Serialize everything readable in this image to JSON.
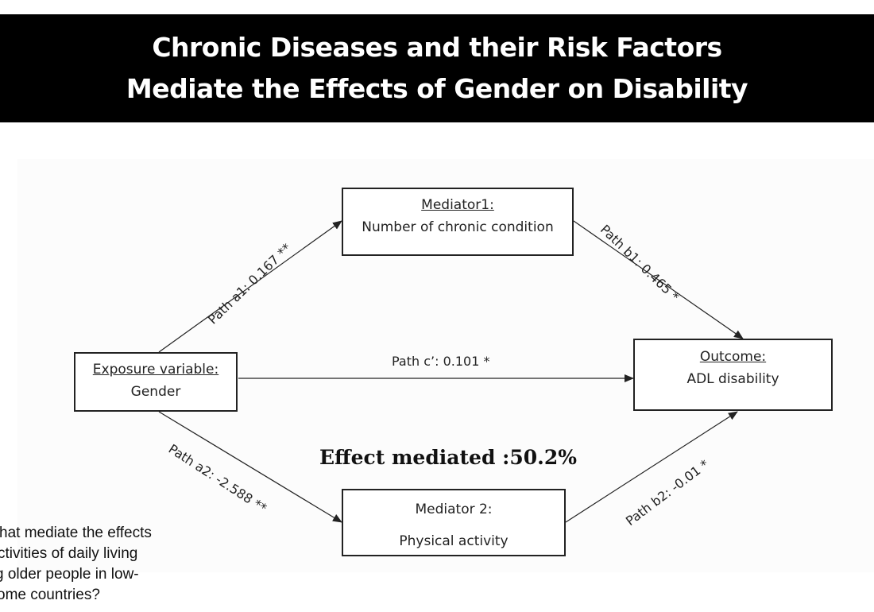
{
  "title": {
    "line1": "Chronic Diseases and their Risk Factors",
    "line2": "Mediate the Effects of Gender on Disability"
  },
  "nodes": {
    "mediator1": {
      "head": "Mediator1:",
      "sub": "Number of chronic condition"
    },
    "exposure": {
      "head": "Exposure variable:",
      "sub": "Gender"
    },
    "outcome": {
      "head": "Outcome:",
      "sub": "ADL disability"
    },
    "mediator2": {
      "head": "Mediator 2:",
      "sub": "Physical activity"
    }
  },
  "paths": {
    "a1": "Path a1: 0.167 **",
    "b1": "Path b1: 0.465 *",
    "c": "Path c’: 0.101 *",
    "a2": "Path a2: -2.588 **",
    "b2": "Path b2: -0.01 *"
  },
  "effect_mediated": "Effect mediated :50.2%",
  "question_lines": [
    "hat mediate the effects",
    "ctivities of daily living",
    "g older people in low-",
    "ome countries?"
  ],
  "colors": {
    "title_bg": "#000000",
    "title_text": "#ffffff",
    "stroke": "#222222"
  }
}
